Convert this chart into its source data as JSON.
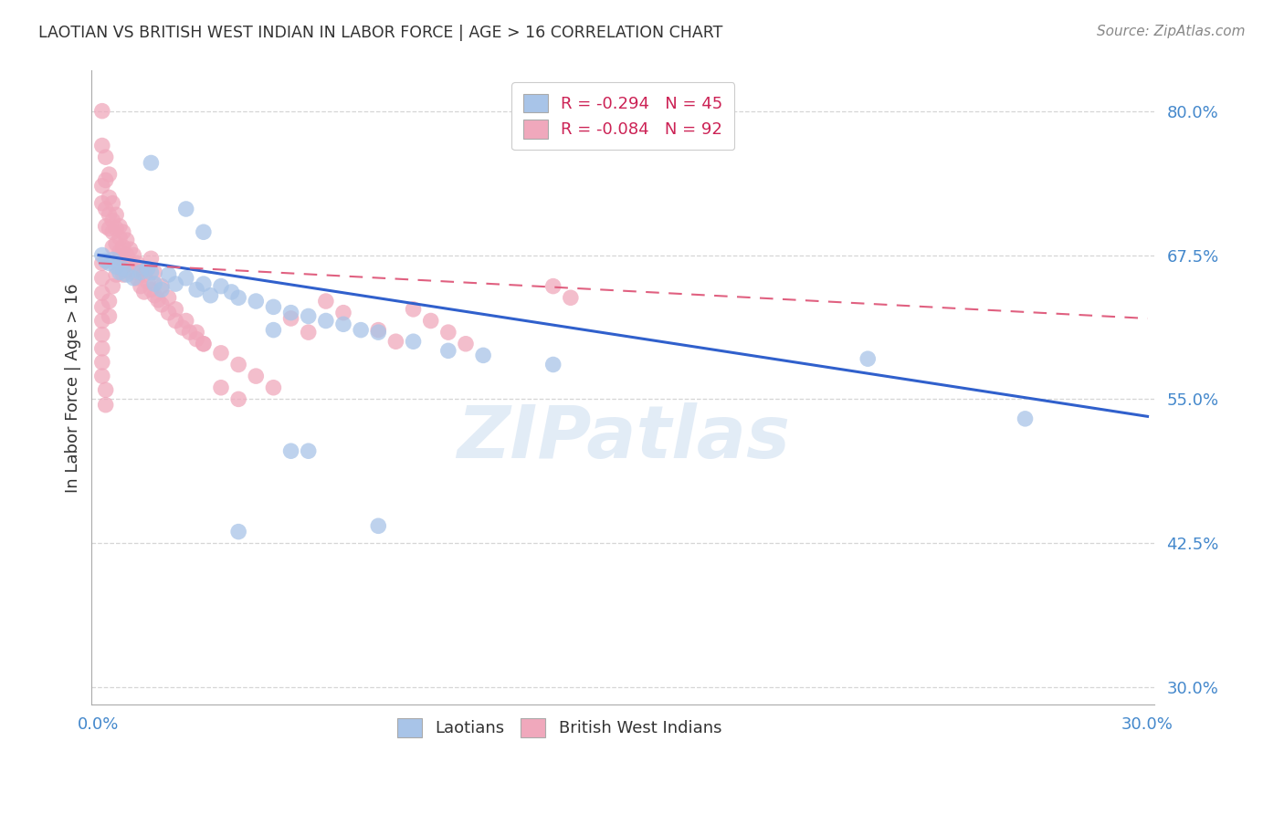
{
  "title": "LAOTIAN VS BRITISH WEST INDIAN IN LABOR FORCE | AGE > 16 CORRELATION CHART",
  "source": "Source: ZipAtlas.com",
  "ylabel": "In Labor Force | Age > 16",
  "ytick_labels": [
    "80.0%",
    "67.5%",
    "55.0%",
    "42.5%",
    "30.0%"
  ],
  "ytick_values": [
    0.8,
    0.675,
    0.55,
    0.425,
    0.3
  ],
  "xlim": [
    -0.002,
    0.302
  ],
  "ylim": [
    0.285,
    0.835
  ],
  "legend_blue_r": "R = -0.294",
  "legend_blue_n": "N = 45",
  "legend_pink_r": "R = -0.084",
  "legend_pink_n": "N = 92",
  "blue_color": "#a8c4e8",
  "pink_color": "#f0a8bc",
  "trendline_blue_color": "#3060cc",
  "trendline_pink_color": "#e06080",
  "blue_scatter": [
    [
      0.001,
      0.675
    ],
    [
      0.002,
      0.67
    ],
    [
      0.003,
      0.668
    ],
    [
      0.004,
      0.671
    ],
    [
      0.005,
      0.665
    ],
    [
      0.006,
      0.66
    ],
    [
      0.007,
      0.663
    ],
    [
      0.008,
      0.658
    ],
    [
      0.01,
      0.655
    ],
    [
      0.012,
      0.66
    ],
    [
      0.014,
      0.663
    ],
    [
      0.015,
      0.66
    ],
    [
      0.016,
      0.65
    ],
    [
      0.018,
      0.645
    ],
    [
      0.02,
      0.658
    ],
    [
      0.022,
      0.65
    ],
    [
      0.025,
      0.655
    ],
    [
      0.028,
      0.645
    ],
    [
      0.03,
      0.65
    ],
    [
      0.032,
      0.64
    ],
    [
      0.035,
      0.648
    ],
    [
      0.038,
      0.643
    ],
    [
      0.04,
      0.638
    ],
    [
      0.045,
      0.635
    ],
    [
      0.05,
      0.63
    ],
    [
      0.055,
      0.625
    ],
    [
      0.06,
      0.622
    ],
    [
      0.065,
      0.618
    ],
    [
      0.07,
      0.615
    ],
    [
      0.075,
      0.61
    ],
    [
      0.08,
      0.608
    ],
    [
      0.09,
      0.6
    ],
    [
      0.1,
      0.592
    ],
    [
      0.11,
      0.588
    ],
    [
      0.13,
      0.58
    ],
    [
      0.015,
      0.755
    ],
    [
      0.025,
      0.715
    ],
    [
      0.03,
      0.695
    ],
    [
      0.05,
      0.61
    ],
    [
      0.055,
      0.505
    ],
    [
      0.06,
      0.505
    ],
    [
      0.04,
      0.435
    ],
    [
      0.08,
      0.44
    ],
    [
      0.22,
      0.585
    ],
    [
      0.265,
      0.533
    ]
  ],
  "pink_scatter": [
    [
      0.001,
      0.8
    ],
    [
      0.001,
      0.77
    ],
    [
      0.001,
      0.735
    ],
    [
      0.001,
      0.72
    ],
    [
      0.002,
      0.76
    ],
    [
      0.002,
      0.74
    ],
    [
      0.002,
      0.715
    ],
    [
      0.002,
      0.7
    ],
    [
      0.003,
      0.745
    ],
    [
      0.003,
      0.725
    ],
    [
      0.003,
      0.71
    ],
    [
      0.003,
      0.698
    ],
    [
      0.004,
      0.72
    ],
    [
      0.004,
      0.705
    ],
    [
      0.004,
      0.695
    ],
    [
      0.004,
      0.682
    ],
    [
      0.005,
      0.71
    ],
    [
      0.005,
      0.698
    ],
    [
      0.005,
      0.685
    ],
    [
      0.006,
      0.7
    ],
    [
      0.006,
      0.69
    ],
    [
      0.006,
      0.678
    ],
    [
      0.007,
      0.695
    ],
    [
      0.007,
      0.682
    ],
    [
      0.007,
      0.67
    ],
    [
      0.008,
      0.688
    ],
    [
      0.008,
      0.675
    ],
    [
      0.008,
      0.662
    ],
    [
      0.009,
      0.68
    ],
    [
      0.009,
      0.668
    ],
    [
      0.01,
      0.675
    ],
    [
      0.01,
      0.66
    ],
    [
      0.011,
      0.668
    ],
    [
      0.011,
      0.655
    ],
    [
      0.012,
      0.662
    ],
    [
      0.012,
      0.648
    ],
    [
      0.013,
      0.658
    ],
    [
      0.013,
      0.643
    ],
    [
      0.014,
      0.652
    ],
    [
      0.015,
      0.645
    ],
    [
      0.016,
      0.64
    ],
    [
      0.017,
      0.636
    ],
    [
      0.018,
      0.632
    ],
    [
      0.02,
      0.625
    ],
    [
      0.022,
      0.618
    ],
    [
      0.024,
      0.612
    ],
    [
      0.026,
      0.608
    ],
    [
      0.028,
      0.602
    ],
    [
      0.03,
      0.598
    ],
    [
      0.001,
      0.668
    ],
    [
      0.001,
      0.655
    ],
    [
      0.001,
      0.642
    ],
    [
      0.001,
      0.63
    ],
    [
      0.001,
      0.618
    ],
    [
      0.001,
      0.606
    ],
    [
      0.001,
      0.594
    ],
    [
      0.001,
      0.582
    ],
    [
      0.001,
      0.57
    ],
    [
      0.002,
      0.558
    ],
    [
      0.002,
      0.545
    ],
    [
      0.003,
      0.635
    ],
    [
      0.003,
      0.622
    ],
    [
      0.004,
      0.648
    ],
    [
      0.005,
      0.658
    ],
    [
      0.006,
      0.672
    ],
    [
      0.007,
      0.658
    ],
    [
      0.015,
      0.672
    ],
    [
      0.016,
      0.66
    ],
    [
      0.018,
      0.648
    ],
    [
      0.02,
      0.638
    ],
    [
      0.022,
      0.628
    ],
    [
      0.025,
      0.618
    ],
    [
      0.028,
      0.608
    ],
    [
      0.03,
      0.598
    ],
    [
      0.035,
      0.59
    ],
    [
      0.04,
      0.58
    ],
    [
      0.045,
      0.57
    ],
    [
      0.05,
      0.56
    ],
    [
      0.055,
      0.62
    ],
    [
      0.06,
      0.608
    ],
    [
      0.065,
      0.635
    ],
    [
      0.07,
      0.625
    ],
    [
      0.08,
      0.61
    ],
    [
      0.085,
      0.6
    ],
    [
      0.09,
      0.628
    ],
    [
      0.095,
      0.618
    ],
    [
      0.1,
      0.608
    ],
    [
      0.105,
      0.598
    ],
    [
      0.035,
      0.56
    ],
    [
      0.04,
      0.55
    ],
    [
      0.13,
      0.648
    ],
    [
      0.135,
      0.638
    ]
  ],
  "blue_line_x": [
    0.0,
    0.3
  ],
  "blue_line_y": [
    0.675,
    0.535
  ],
  "pink_line_x": [
    0.0,
    0.3
  ],
  "pink_line_y": [
    0.668,
    0.62
  ],
  "watermark": "ZIPatlas",
  "background_color": "#ffffff",
  "grid_color": "#cccccc"
}
